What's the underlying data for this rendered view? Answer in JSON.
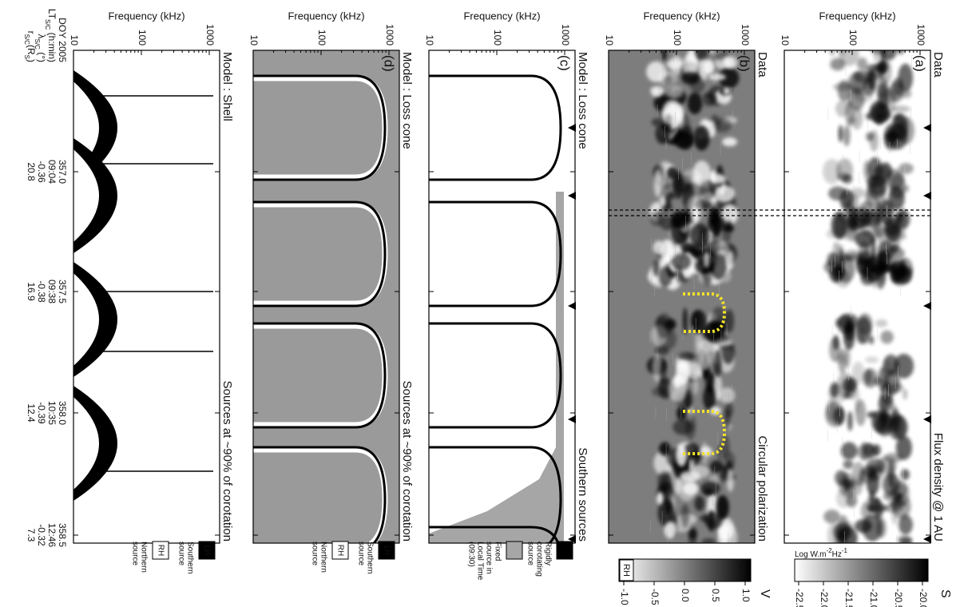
{
  "panels": [
    {
      "letter": "(a)",
      "title_left": "Data",
      "title_right": "Flux density @ 1 AU",
      "y_label": "Frequency (kHz)",
      "y_ticks": [
        "10",
        "100",
        "1000"
      ]
    },
    {
      "letter": "(b)",
      "title_left": "Data",
      "title_right": "Circular polarization",
      "y_label": "Frequency (kHz)",
      "y_ticks": [
        "10",
        "100",
        "1000"
      ]
    },
    {
      "letter": "(c)",
      "title_left": "Model : Loss cone",
      "title_right": "Southern sources",
      "y_label": "Frequency (kHz)",
      "y_ticks": [
        "10",
        "100",
        "1000"
      ]
    },
    {
      "letter": "(d)",
      "title_left": "Model : Loss cone",
      "title_right": "Sources at ~90% of corotation",
      "y_label": "Frequency (kHz)",
      "y_ticks": [
        "10",
        "100",
        "1000"
      ]
    },
    {
      "title_left": "Model : Shell",
      "title_right": "Sources at ~90% of corotation",
      "y_label": "Frequency (kHz)",
      "y_ticks": [
        "10",
        "100",
        "1000"
      ]
    }
  ],
  "time_axis": {
    "row_labels": [
      [
        "DOY 2005"
      ],
      [
        "LT",
        "S/C",
        " (h:min)"
      ],
      [
        "λ",
        "S/C",
        " (°)"
      ],
      [
        "r",
        "S/C",
        "(R",
        "S",
        ")"
      ]
    ],
    "ticks": [
      [
        "357.0",
        "09:04",
        "-0.36",
        "20.8"
      ],
      [
        "357.5",
        "09:38",
        "-0.38",
        "16.9"
      ],
      [
        "358.0",
        "10:35",
        "-0.39",
        "12.4"
      ],
      [
        "358.5",
        "12:46",
        "-0.32",
        "7.3"
      ]
    ]
  },
  "colorbar_a": {
    "label": "S",
    "unit": [
      "Log W.m",
      "-2",
      "Hz",
      "-1"
    ],
    "ticks": [
      "-20.0",
      "-20.5",
      "-21.0",
      "-21.5",
      "-22.0",
      "-22.5"
    ]
  },
  "colorbar_b": {
    "label": "V",
    "top": "LH",
    "bottom": "RH",
    "ticks": [
      "1.0",
      "0.5",
      "0.0",
      "-0.5",
      "-1.0"
    ]
  },
  "legend_c": [
    {
      "lines": [
        "Rigidly",
        "corotating",
        "source"
      ]
    },
    {
      "lines": [
        "Fixed",
        "source in",
        "Local Time",
        "(09:30)"
      ]
    }
  ],
  "legend_d": [
    {
      "box": "LH",
      "lines": [
        "Southern",
        "source"
      ]
    },
    {
      "box": "RH",
      "lines": [
        "Northern",
        "source"
      ]
    }
  ],
  "legend_e": [
    {
      "box": "LH",
      "lines": [
        "Southern",
        "source"
      ]
    },
    {
      "box": "RH",
      "lines": [
        "Northern",
        "source"
      ]
    }
  ]
}
